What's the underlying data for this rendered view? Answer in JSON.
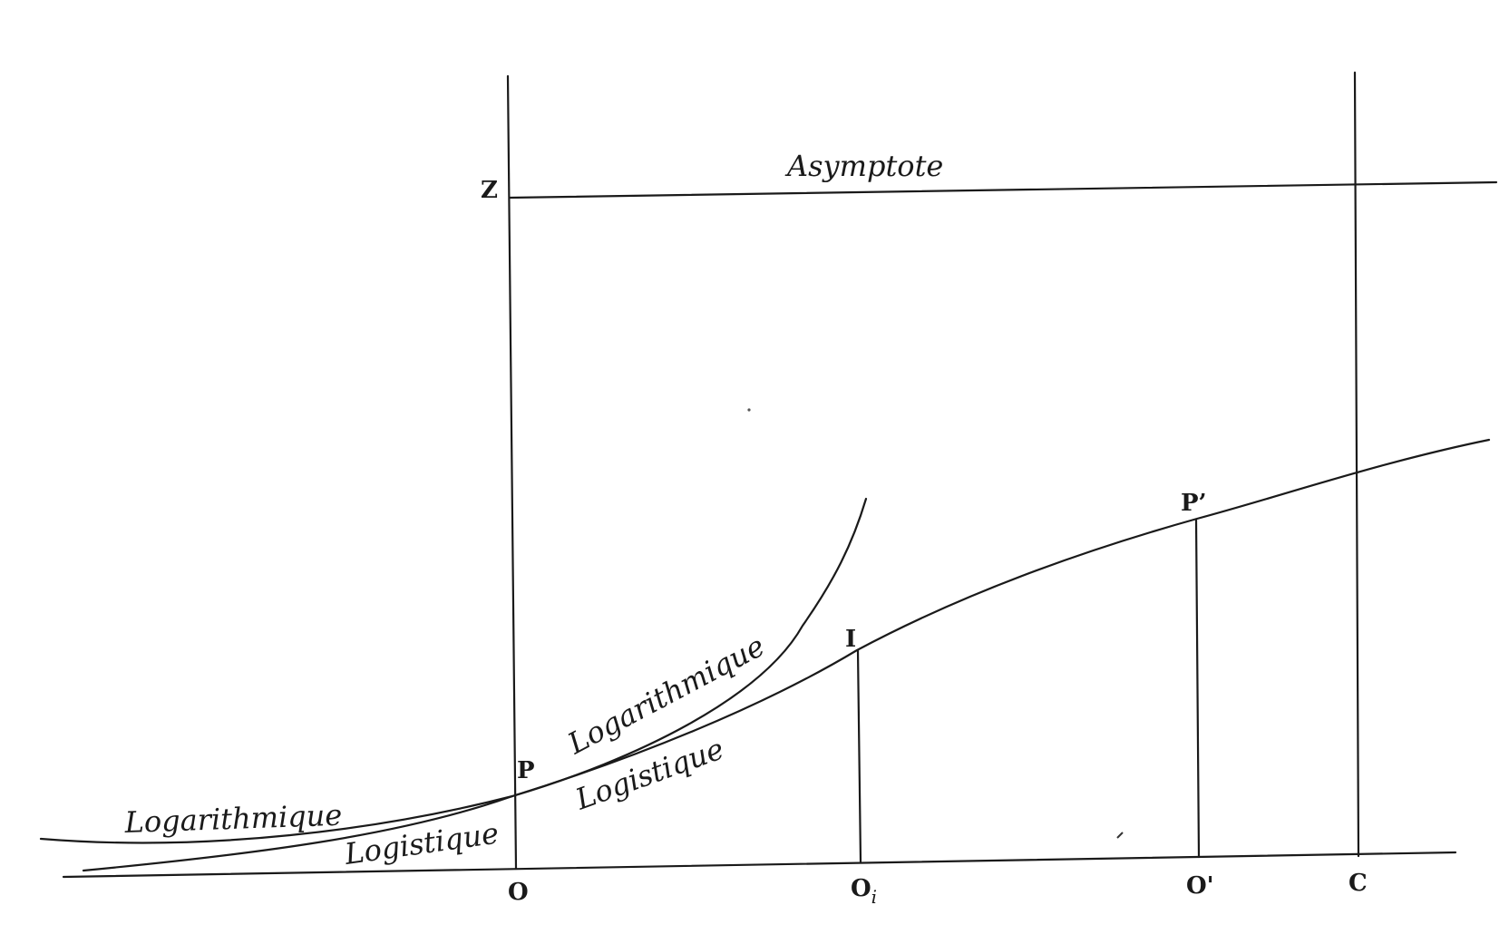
{
  "diagram": {
    "title_label": "Asymptote",
    "points": {
      "Z": "Z",
      "P": "P",
      "I": "I",
      "P_prime": "P’",
      "O": "O",
      "O_i": "O",
      "O_i_sub": "i",
      "O_prime": "O'",
      "C": "C"
    },
    "curve_labels": {
      "log_left": "Logarithmique",
      "logistic_left": "Logistique",
      "log_right": "Logarithmique",
      "logistic_right": "Logistique"
    }
  },
  "colors": {
    "ink": "#1a1a1a",
    "paper": "#ffffff"
  }
}
